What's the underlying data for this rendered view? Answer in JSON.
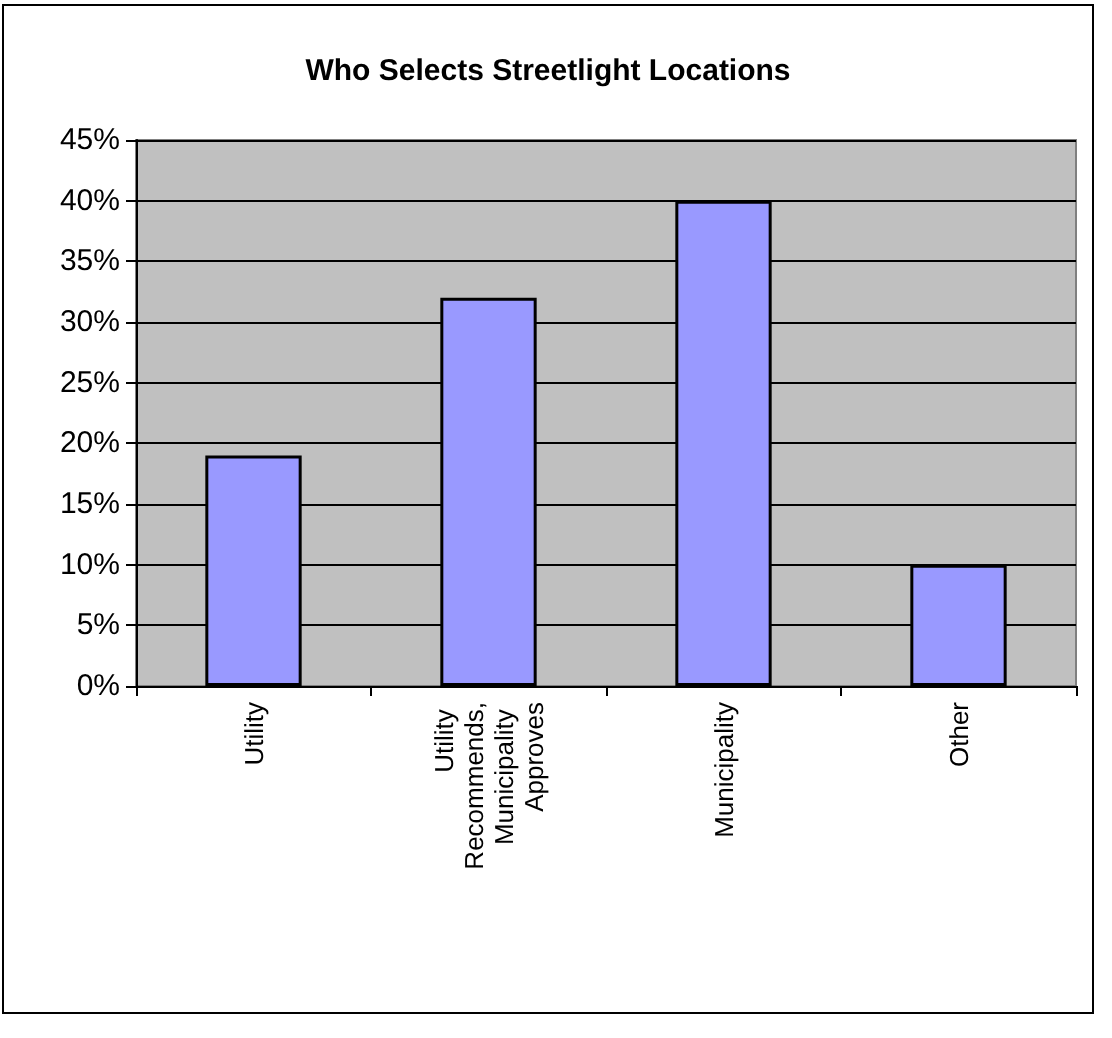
{
  "chart_data": {
    "type": "bar",
    "title": "Who Selects Streetlight Locations",
    "categories": [
      "Utility",
      "Utility Recommends, Municipality Approves",
      "Municipality",
      "Other"
    ],
    "values": [
      19,
      32,
      40,
      10
    ],
    "color": "#9999ff",
    "ylim": [
      0,
      45
    ],
    "yticks": [
      {
        "value": 0,
        "label": "0%"
      },
      {
        "value": 5,
        "label": "5%"
      },
      {
        "value": 10,
        "label": "10%"
      },
      {
        "value": 15,
        "label": "15%"
      },
      {
        "value": 20,
        "label": "20%"
      },
      {
        "value": 25,
        "label": "25%"
      },
      {
        "value": 30,
        "label": "30%"
      },
      {
        "value": 35,
        "label": "35%"
      },
      {
        "value": 40,
        "label": "40%"
      },
      {
        "value": 45,
        "label": "45%"
      }
    ],
    "grid": "y"
  }
}
